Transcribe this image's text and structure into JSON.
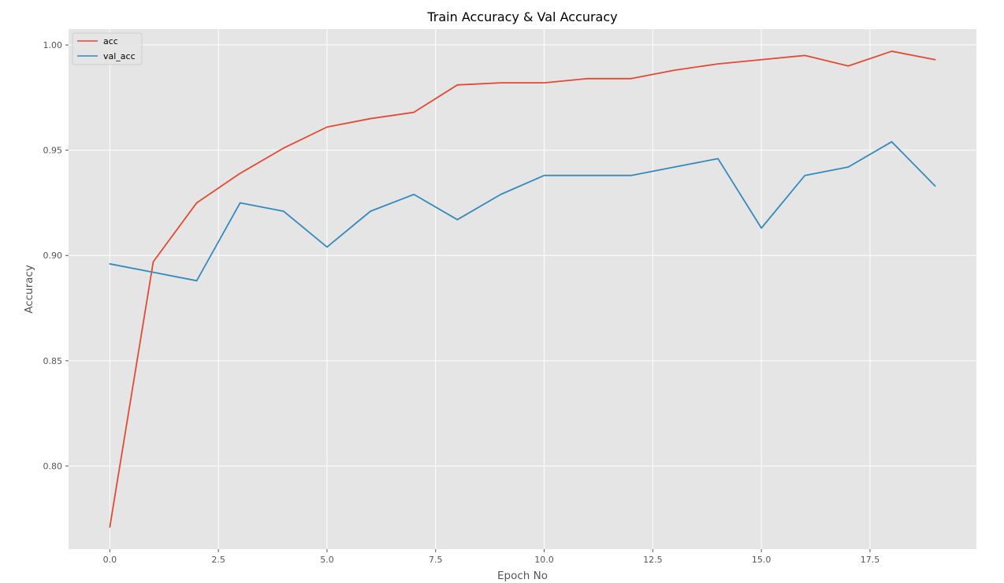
{
  "chart_data": {
    "type": "line",
    "title": "Train Accuracy & Val Accuracy",
    "xlabel": "Epoch No",
    "ylabel": "Accuracy",
    "x": [
      0,
      1,
      2,
      3,
      4,
      5,
      6,
      7,
      8,
      9,
      10,
      11,
      12,
      13,
      14,
      15,
      16,
      17,
      18,
      19
    ],
    "xlim": [
      -0.95,
      19.95
    ],
    "ylim": [
      0.7605,
      1.0075
    ],
    "x_ticks": [
      0.0,
      2.5,
      5.0,
      7.5,
      10.0,
      12.5,
      15.0,
      17.5
    ],
    "x_tick_labels": [
      "0.0",
      "2.5",
      "5.0",
      "7.5",
      "10.0",
      "12.5",
      "15.0",
      "17.5"
    ],
    "y_ticks": [
      0.8,
      0.85,
      0.9,
      0.95,
      1.0
    ],
    "y_tick_labels": [
      "0.80",
      "0.85",
      "0.90",
      "0.95",
      "1.00"
    ],
    "grid": true,
    "legend_position": "top-left",
    "series": [
      {
        "name": "acc",
        "color": "#E24A33",
        "values": [
          0.771,
          0.897,
          0.925,
          0.939,
          0.951,
          0.961,
          0.965,
          0.968,
          0.981,
          0.982,
          0.982,
          0.984,
          0.984,
          0.988,
          0.991,
          0.993,
          0.995,
          0.99,
          0.997,
          0.993
        ]
      },
      {
        "name": "val_acc",
        "color": "#348ABD",
        "values": [
          0.896,
          0.892,
          0.888,
          0.925,
          0.921,
          0.904,
          0.921,
          0.929,
          0.917,
          0.929,
          0.938,
          0.938,
          0.938,
          0.942,
          0.946,
          0.913,
          0.938,
          0.942,
          0.954,
          0.933
        ]
      }
    ],
    "colors": {
      "plot_background": "#E5E5E5",
      "grid": "#FFFFFF"
    }
  }
}
